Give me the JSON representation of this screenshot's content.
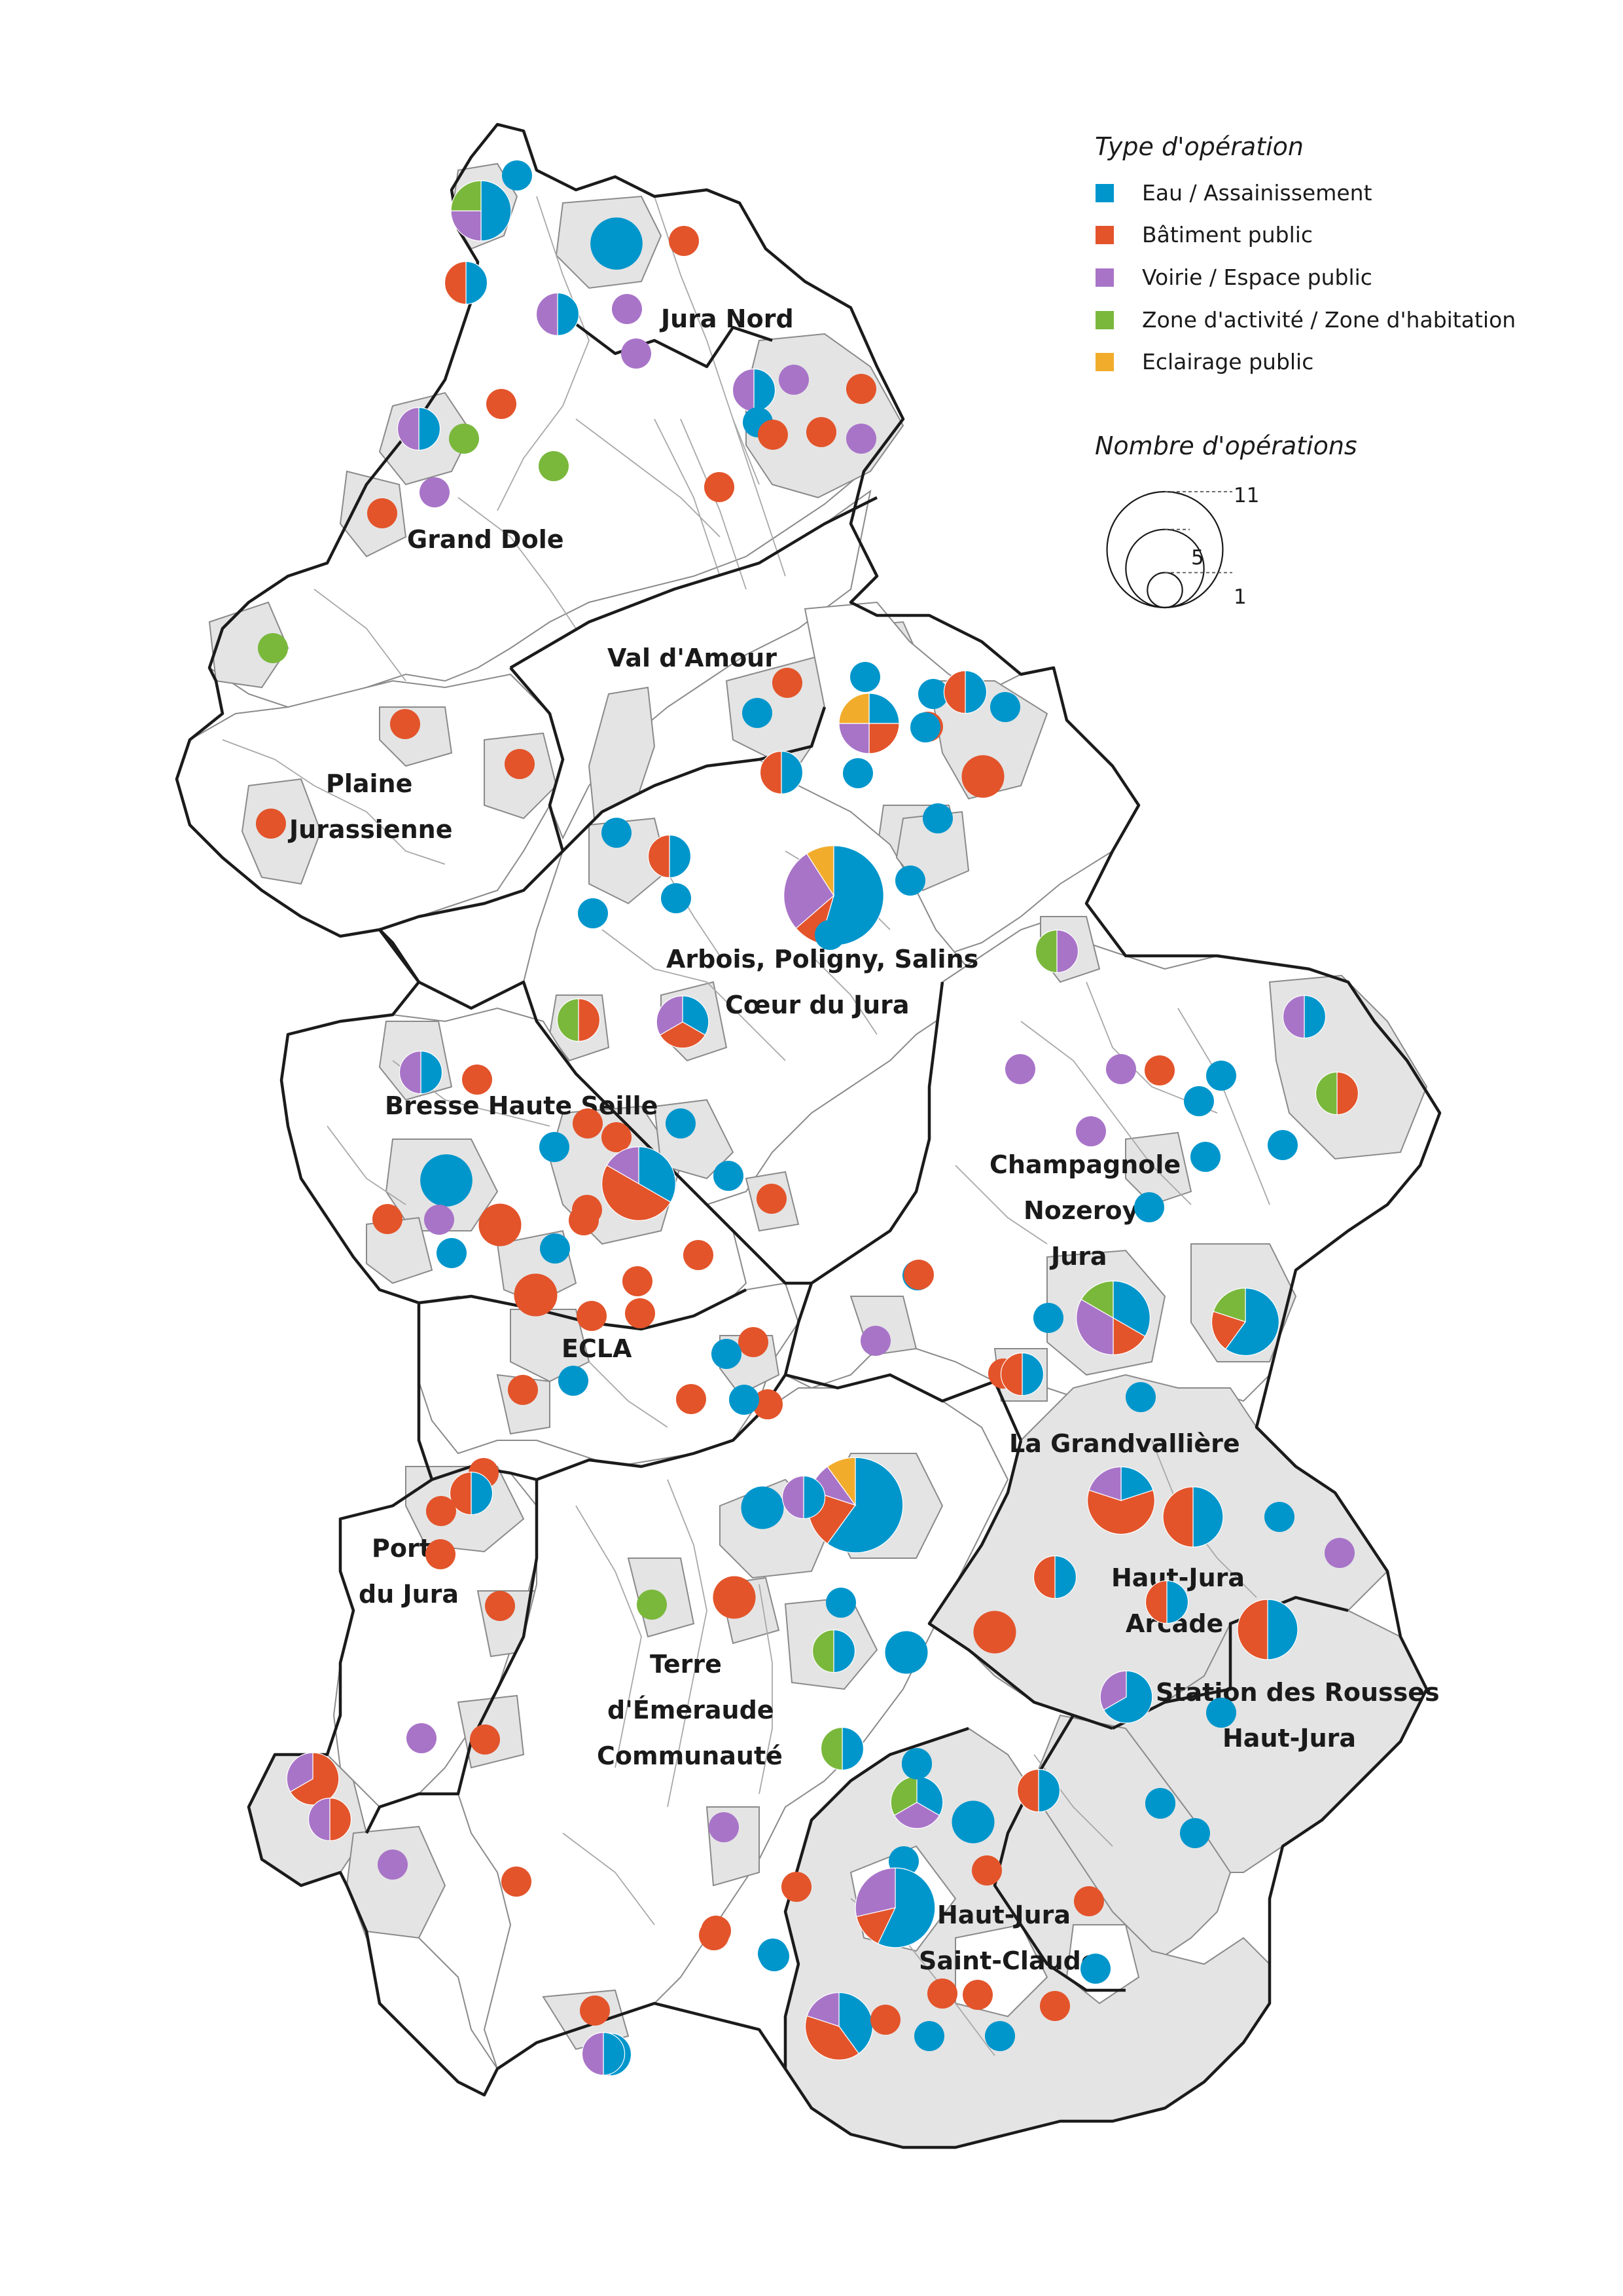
{
  "legend": {
    "type_title": "Type d'opération",
    "size_title": "Nombre d'opérations",
    "types": [
      {
        "key": "eau",
        "label": "Eau / Assainissement",
        "color": "#0096cc"
      },
      {
        "key": "bat",
        "label": "Bâtiment public",
        "color": "#e3542b"
      },
      {
        "key": "voi",
        "label": "Voirie / Espace public",
        "color": "#a874c8"
      },
      {
        "key": "zone",
        "label": "Zone d'activité / Zone d'habitation",
        "color": "#7ab83c"
      },
      {
        "key": "ecl",
        "label": "Eclairage public",
        "color": "#f2ac2c"
      }
    ],
    "sizes": [
      {
        "value": 11,
        "label": "11"
      },
      {
        "value": 5,
        "label": "5"
      },
      {
        "value": 1,
        "label": "1"
      }
    ]
  },
  "regions": {
    "jura_nord": "Jura Nord",
    "grand_dole": "Grand Dole",
    "val_amour": "Val d'Amour",
    "plaine_1": "Plaine",
    "plaine_2": "Jurassienne",
    "arbois_1": "Arbois, Poligny, Salins",
    "arbois_2": "Cœur du Jura",
    "bresse": "Bresse Haute Seille",
    "champagnole_1": "Champagnole",
    "champagnole_2": "Nozeroy",
    "champagnole_3": "Jura",
    "ecla": "ECLA",
    "grandvalliere": "La Grandvallière",
    "porte_1": "Porte",
    "porte_2": "du Jura",
    "hj_arcade_1": "Haut-Jura",
    "hj_arcade_2": "Arcade",
    "rousses_1": "Station des Rousses",
    "rousses_2": "Haut-Jura",
    "terre_1": "Terre",
    "terre_2": "d'Émeraude",
    "terre_3": "Communauté",
    "hj_sc_1": "Haut-Jura",
    "hj_sc_2": "Saint-Claude"
  },
  "operations": [
    {
      "id": "jn-1",
      "counts": {
        "eau": 1
      }
    },
    {
      "id": "jn-2",
      "counts": {
        "eau": 2,
        "voi": 1,
        "zone": 1
      }
    },
    {
      "id": "jn-3",
      "counts": {
        "eau": 3
      }
    },
    {
      "id": "jn-4",
      "counts": {
        "bat": 1
      }
    },
    {
      "id": "jn-5",
      "counts": {
        "eau": 1,
        "bat": 1
      }
    },
    {
      "id": "jn-6",
      "counts": {
        "eau": 1,
        "voi": 1
      }
    },
    {
      "id": "jn-7",
      "counts": {
        "voi": 1
      }
    },
    {
      "id": "jn-8",
      "counts": {
        "voi": 1
      }
    },
    {
      "id": "jn-9",
      "counts": {
        "eau": 1,
        "voi": 1
      }
    },
    {
      "id": "jn-10",
      "counts": {
        "voi": 1
      }
    },
    {
      "id": "jn-11",
      "counts": {
        "bat": 1
      }
    },
    {
      "id": "jn-12",
      "counts": {
        "eau": 1
      }
    },
    {
      "id": "jn-13",
      "counts": {
        "bat": 1
      }
    },
    {
      "id": "jn-14",
      "counts": {
        "bat": 1
      }
    },
    {
      "id": "jn-15",
      "counts": {
        "voi": 1
      }
    },
    {
      "id": "jn-16",
      "counts": {
        "bat": 1
      }
    },
    {
      "id": "gd-1",
      "counts": {
        "bat": 1
      }
    },
    {
      "id": "gd-2",
      "counts": {
        "eau": 1,
        "voi": 1
      }
    },
    {
      "id": "gd-3",
      "counts": {
        "zone": 1
      }
    },
    {
      "id": "gd-4",
      "counts": {
        "zone": 1
      }
    },
    {
      "id": "gd-5",
      "counts": {
        "voi": 1
      }
    },
    {
      "id": "gd-6",
      "counts": {
        "bat": 1
      }
    },
    {
      "id": "gd-7",
      "counts": {
        "zone": 1
      }
    },
    {
      "id": "va-1",
      "counts": {
        "bat": 1
      }
    },
    {
      "id": "va-2",
      "counts": {
        "eau": 1
      }
    },
    {
      "id": "va-3",
      "counts": {
        "eau": 1
      }
    },
    {
      "id": "va-4",
      "counts": {
        "eau": 1,
        "bat": 1,
        "voi": 1,
        "ecl": 1
      }
    },
    {
      "id": "va-5",
      "counts": {
        "eau": 1
      }
    },
    {
      "id": "va-6",
      "counts": {
        "eau": 1,
        "bat": 1
      }
    },
    {
      "id": "va-7",
      "counts": {
        "bat": 1
      }
    },
    {
      "id": "va-8",
      "counts": {
        "eau": 1
      }
    },
    {
      "id": "va-9",
      "counts": {
        "eau": 1
      }
    },
    {
      "id": "va-10",
      "counts": {
        "eau": 1,
        "bat": 1
      }
    },
    {
      "id": "va-11",
      "counts": {
        "eau": 1
      }
    },
    {
      "id": "va-12",
      "counts": {
        "bat": 2
      }
    },
    {
      "id": "pj-1",
      "counts": {
        "bat": 1
      }
    },
    {
      "id": "pj-2",
      "counts": {
        "bat": 1
      }
    },
    {
      "id": "pj-3",
      "counts": {
        "bat": 1
      }
    },
    {
      "id": "ac-1",
      "counts": {
        "eau": 6,
        "bat": 1,
        "voi": 3,
        "ecl": 1
      }
    },
    {
      "id": "ac-2",
      "counts": {
        "eau": 1
      }
    },
    {
      "id": "ac-3",
      "counts": {
        "eau": 1
      }
    },
    {
      "id": "ac-4",
      "counts": {
        "eau": 1,
        "bat": 1
      }
    },
    {
      "id": "ac-5",
      "counts": {
        "eau": 1
      }
    },
    {
      "id": "ac-6",
      "counts": {
        "eau": 1
      }
    },
    {
      "id": "ac-7",
      "counts": {
        "eau": 1
      }
    },
    {
      "id": "ac-8",
      "counts": {
        "eau": 1,
        "bat": 1,
        "voi": 1
      }
    },
    {
      "id": "ac-9",
      "counts": {
        "bat": 1,
        "zone": 1
      }
    },
    {
      "id": "ac-10",
      "counts": {
        "eau": 1
      }
    },
    {
      "id": "bh-1",
      "counts": {
        "eau": 1,
        "voi": 1
      }
    },
    {
      "id": "bh-2",
      "counts": {
        "bat": 1
      }
    },
    {
      "id": "bh-3",
      "counts": {
        "bat": 1
      }
    },
    {
      "id": "bh-4",
      "counts": {
        "eau": 2
      }
    },
    {
      "id": "bh-5",
      "counts": {
        "eau": 2,
        "bat": 3,
        "voi": 1
      }
    },
    {
      "id": "bh-6",
      "counts": {
        "eau": 1
      }
    },
    {
      "id": "bh-7",
      "counts": {
        "eau": 1
      }
    },
    {
      "id": "bh-8",
      "counts": {
        "bat": 1
      }
    },
    {
      "id": "bh-9",
      "counts": {
        "eau": 3
      }
    },
    {
      "id": "bh-10",
      "counts": {
        "voi": 1
      }
    },
    {
      "id": "bh-11",
      "counts": {
        "bat": 2
      }
    },
    {
      "id": "bh-12",
      "counts": {
        "eau": 1
      }
    },
    {
      "id": "bh-13",
      "counts": {
        "bat": 1
      }
    },
    {
      "id": "bh-14",
      "counts": {
        "bat": 1
      }
    },
    {
      "id": "bh-15",
      "counts": {
        "eau": 1
      }
    },
    {
      "id": "bh-16",
      "counts": {
        "bat": 1
      }
    },
    {
      "id": "bh-17",
      "counts": {
        "bat": 1
      }
    },
    {
      "id": "bh-18",
      "counts": {
        "bat": 1
      }
    },
    {
      "id": "bh-19",
      "counts": {
        "eau": 1
      }
    },
    {
      "id": "bh-20",
      "counts": {
        "bat": 1
      }
    },
    {
      "id": "bh-21",
      "counts": {
        "bat": 2
      }
    },
    {
      "id": "ch-1",
      "counts": {
        "voi": 1,
        "zone": 1
      }
    },
    {
      "id": "ch-2",
      "counts": {
        "eau": 1,
        "voi": 1
      }
    },
    {
      "id": "ch-3",
      "counts": {
        "voi": 1
      }
    },
    {
      "id": "ch-4",
      "counts": {
        "voi": 1
      }
    },
    {
      "id": "ch-5",
      "counts": {
        "bat": 1
      }
    },
    {
      "id": "ch-6",
      "counts": {
        "eau": 1
      }
    },
    {
      "id": "ch-7",
      "counts": {
        "eau": 1
      }
    },
    {
      "id": "ch-8",
      "counts": {
        "bat": 1,
        "zone": 1
      }
    },
    {
      "id": "ch-9",
      "counts": {
        "voi": 1
      }
    },
    {
      "id": "ch-10",
      "counts": {
        "eau": 1
      }
    },
    {
      "id": "ch-11",
      "counts": {
        "eau": 1
      }
    },
    {
      "id": "ch-12",
      "counts": {
        "eau": 1
      }
    },
    {
      "id": "ch-13",
      "counts": {
        "eau": 1
      }
    },
    {
      "id": "ch-14",
      "counts": {
        "bat": 1
      }
    },
    {
      "id": "ch-15",
      "counts": {
        "eau": 1
      }
    },
    {
      "id": "ch-16",
      "counts": {
        "eau": 2,
        "bat": 1,
        "voi": 2,
        "zone": 1
      }
    },
    {
      "id": "ch-17",
      "counts": {
        "eau": 3,
        "bat": 1,
        "zone": 1
      }
    },
    {
      "id": "ch-18",
      "counts": {
        "voi": 1
      }
    },
    {
      "id": "ch-19",
      "counts": {
        "bat": 1
      }
    },
    {
      "id": "ch-20",
      "counts": {
        "eau": 1,
        "bat": 1
      }
    },
    {
      "id": "ch-21",
      "counts": {
        "eau": 1
      }
    },
    {
      "id": "ch-22",
      "counts": {
        "bat": 1
      }
    },
    {
      "id": "ec-1",
      "counts": {
        "bat": 2
      }
    },
    {
      "id": "ec-2",
      "counts": {
        "bat": 1
      }
    },
    {
      "id": "ec-3",
      "counts": {
        "bat": 1
      }
    },
    {
      "id": "ec-4",
      "counts": {
        "eau": 1
      }
    },
    {
      "id": "ec-5",
      "counts": {
        "bat": 1
      }
    },
    {
      "id": "ec-6",
      "counts": {
        "eau": 1
      }
    },
    {
      "id": "ec-7",
      "counts": {
        "bat": 1
      }
    },
    {
      "id": "ec-8",
      "counts": {
        "eau": 1
      }
    },
    {
      "id": "ec-9",
      "counts": {
        "bat": 1
      }
    },
    {
      "id": "po-1",
      "counts": {
        "bat": 1
      }
    },
    {
      "id": "po-2",
      "counts": {
        "eau": 1,
        "bat": 1
      }
    },
    {
      "id": "po-3",
      "counts": {
        "bat": 1
      }
    },
    {
      "id": "po-4",
      "counts": {
        "bat": 1
      }
    },
    {
      "id": "po-5",
      "counts": {
        "bat": 1
      }
    },
    {
      "id": "po-6",
      "counts": {
        "voi": 1
      }
    },
    {
      "id": "po-7",
      "counts": {
        "bat": 1
      }
    },
    {
      "id": "po-8",
      "counts": {
        "bat": 2,
        "voi": 1
      }
    },
    {
      "id": "po-9",
      "counts": {
        "bat": 1,
        "voi": 1
      }
    },
    {
      "id": "po-10",
      "counts": {
        "voi": 1
      }
    },
    {
      "id": "te-1",
      "counts": {
        "eau": 2
      }
    },
    {
      "id": "te-2",
      "counts": {
        "eau": 6,
        "bat": 2,
        "voi": 1,
        "ecl": 1
      }
    },
    {
      "id": "te-3",
      "counts": {
        "eau": 1,
        "voi": 1
      }
    },
    {
      "id": "te-4",
      "counts": {
        "bat": 2
      }
    },
    {
      "id": "te-5",
      "counts": {
        "zone": 1
      }
    },
    {
      "id": "te-6",
      "counts": {
        "eau": 1
      }
    },
    {
      "id": "te-7",
      "counts": {
        "eau": 1,
        "zone": 1
      }
    },
    {
      "id": "te-8",
      "counts": {
        "eau": 2
      }
    },
    {
      "id": "te-9",
      "counts": {
        "eau": 1,
        "zone": 1
      }
    },
    {
      "id": "te-10",
      "counts": {
        "voi": 1
      }
    },
    {
      "id": "te-11",
      "counts": {
        "bat": 1
      }
    },
    {
      "id": "te-12",
      "counts": {
        "bat": 1
      }
    },
    {
      "id": "te-13",
      "counts": {
        "bat": 1
      }
    },
    {
      "id": "te-14",
      "counts": {
        "eau": 1
      }
    },
    {
      "id": "te-15",
      "counts": {
        "bat": 1
      }
    },
    {
      "id": "te-16",
      "counts": {
        "eau": 1,
        "voi": 1
      }
    },
    {
      "id": "te-17",
      "counts": {
        "bat": 1
      }
    },
    {
      "id": "te-18",
      "counts": {
        "bat": 1
      }
    },
    {
      "id": "gv-1",
      "counts": {
        "eau": 1,
        "bat": 3,
        "voi": 1
      }
    },
    {
      "id": "gv-2",
      "counts": {
        "eau": 2,
        "bat": 2
      }
    },
    {
      "id": "gv-3",
      "counts": {
        "eau": 1
      }
    },
    {
      "id": "gv-4",
      "counts": {
        "voi": 1
      }
    },
    {
      "id": "gv-5",
      "counts": {
        "eau": 1,
        "bat": 1
      }
    },
    {
      "id": "gv-6",
      "counts": {
        "bat": 2
      }
    },
    {
      "id": "ha-1",
      "counts": {
        "eau": 1,
        "bat": 1
      }
    },
    {
      "id": "ha-2",
      "counts": {
        "eau": 2,
        "bat": 2
      }
    },
    {
      "id": "sr-1",
      "counts": {
        "eau": 2,
        "voi": 1
      }
    },
    {
      "id": "sr-2",
      "counts": {
        "eau": 1
      }
    },
    {
      "id": "sr-3",
      "counts": {
        "eau": 1
      }
    },
    {
      "id": "sc-1",
      "counts": {
        "eau": 1
      }
    },
    {
      "id": "sc-2",
      "counts": {
        "eau": 1,
        "voi": 1,
        "zone": 1
      }
    },
    {
      "id": "sc-3",
      "counts": {
        "eau": 1
      }
    },
    {
      "id": "sc-4",
      "counts": {
        "eau": 1,
        "bat": 1
      }
    },
    {
      "id": "sc-5",
      "counts": {
        "eau": 1
      }
    },
    {
      "id": "sc-6",
      "counts": {
        "eau": 2
      }
    },
    {
      "id": "sc-7",
      "counts": {
        "eau": 1
      }
    },
    {
      "id": "sc-8",
      "counts": {
        "eau": 4,
        "bat": 1,
        "voi": 2
      }
    },
    {
      "id": "sc-9",
      "counts": {
        "bat": 1
      }
    },
    {
      "id": "sc-10",
      "counts": {
        "eau": 1
      }
    },
    {
      "id": "sc-11",
      "counts": {
        "eau": 2,
        "bat": 2,
        "voi": 1
      }
    },
    {
      "id": "sc-12",
      "counts": {
        "bat": 1
      }
    },
    {
      "id": "sc-13",
      "counts": {
        "eau": 1
      }
    },
    {
      "id": "sc-14",
      "counts": {
        "eau": 1
      }
    },
    {
      "id": "sc-15",
      "counts": {
        "bat": 1
      }
    },
    {
      "id": "sc-16",
      "counts": {
        "eau": 1
      }
    },
    {
      "id": "sc-17",
      "counts": {
        "bat": 1
      }
    },
    {
      "id": "sc-18",
      "counts": {
        "eau": 1,
        "voi": 1
      }
    },
    {
      "id": "sc-19",
      "counts": {
        "bat": 1
      }
    },
    {
      "id": "sc-20",
      "counts": {
        "eau": 1
      }
    }
  ]
}
